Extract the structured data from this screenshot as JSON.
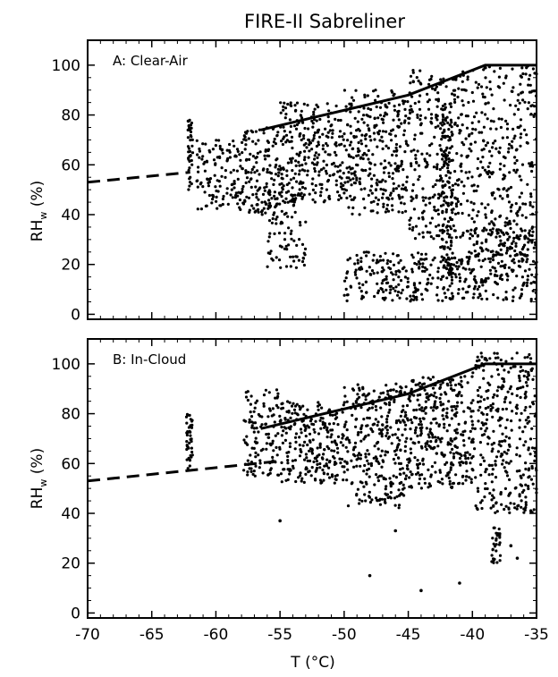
{
  "figure": {
    "title": "FIRE-II Sabreliner",
    "xlabel": "T (°C)"
  },
  "chart_data": [
    {
      "type": "scatter",
      "panel": "A: Clear-Air",
      "ylabel_main": "RH",
      "ylabel_sub": "w",
      "ylabel_unit": " (%)",
      "xlim": [
        -70,
        -35
      ],
      "ylim": [
        -2,
        110
      ],
      "x_ticks": [
        -70,
        -65,
        -60,
        -55,
        -50,
        -45,
        -40,
        -35
      ],
      "y_ticks": [
        0,
        20,
        40,
        60,
        80,
        100
      ],
      "curves": [
        {
          "style": "dashed",
          "x": [
            -70,
            -62
          ],
          "y": [
            53,
            57
          ]
        },
        {
          "style": "solid",
          "x": [
            -56.5,
            -45,
            -39,
            -35
          ],
          "y": [
            74,
            88,
            100,
            100
          ]
        }
      ],
      "clusters": [
        {
          "x": [
            -62.2,
            -61.8
          ],
          "y": [
            50,
            78
          ],
          "density": 40
        },
        {
          "x": [
            -61.5,
            -58
          ],
          "y": [
            42,
            70
          ],
          "density": 120
        },
        {
          "x": [
            -58,
            -55
          ],
          "y": [
            40,
            75
          ],
          "density": 150
        },
        {
          "x": [
            -56,
            -53
          ],
          "y": [
            18,
            50
          ],
          "density": 90
        },
        {
          "x": [
            -55,
            -50
          ],
          "y": [
            45,
            85
          ],
          "density": 260
        },
        {
          "x": [
            -50,
            -45
          ],
          "y": [
            40,
            90
          ],
          "density": 300
        },
        {
          "x": [
            -45,
            -40
          ],
          "y": [
            30,
            98
          ],
          "density": 320
        },
        {
          "x": [
            -40,
            -35
          ],
          "y": [
            20,
            100
          ],
          "density": 300
        },
        {
          "x": [
            -50,
            -40
          ],
          "y": [
            5,
            25
          ],
          "density": 260
        },
        {
          "x": [
            -40,
            -35
          ],
          "y": [
            5,
            35
          ],
          "density": 200
        },
        {
          "x": [
            -42.5,
            -41.5
          ],
          "y": [
            5,
            85
          ],
          "density": 120
        }
      ]
    },
    {
      "type": "scatter",
      "panel": "B: In-Cloud",
      "ylabel_main": "RH",
      "ylabel_sub": "w",
      "ylabel_unit": " (%)",
      "xlim": [
        -70,
        -35
      ],
      "ylim": [
        -2,
        110
      ],
      "x_ticks": [
        -70,
        -65,
        -60,
        -55,
        -50,
        -45,
        -40,
        -35
      ],
      "y_ticks": [
        0,
        20,
        40,
        60,
        80,
        100
      ],
      "x_ticklabels": [
        "-70",
        "-65",
        "-60",
        "-55",
        "-50",
        "-45",
        "-40",
        "-35"
      ],
      "curves": [
        {
          "style": "dashed",
          "x": [
            -70,
            -55
          ],
          "y": [
            53,
            61
          ]
        },
        {
          "style": "solid",
          "x": [
            -56.5,
            -45,
            -39,
            -35
          ],
          "y": [
            74,
            88,
            100,
            100
          ]
        }
      ],
      "clusters": [
        {
          "x": [
            -62.3,
            -61.8
          ],
          "y": [
            58,
            80
          ],
          "density": 40
        },
        {
          "x": [
            -58,
            -55
          ],
          "y": [
            55,
            90
          ],
          "density": 120
        },
        {
          "x": [
            -55,
            -50
          ],
          "y": [
            52,
            85
          ],
          "density": 250
        },
        {
          "x": [
            -50,
            -45
          ],
          "y": [
            42,
            92
          ],
          "density": 320
        },
        {
          "x": [
            -45,
            -40
          ],
          "y": [
            50,
            95
          ],
          "density": 340
        },
        {
          "x": [
            -40,
            -35
          ],
          "y": [
            40,
            105
          ],
          "density": 340
        },
        {
          "x": [
            -38.5,
            -37.8
          ],
          "y": [
            20,
            35
          ],
          "density": 30
        }
      ],
      "isolated_points": [
        [
          -55,
          37
        ],
        [
          -48,
          15
        ],
        [
          -46,
          33
        ],
        [
          -44,
          9
        ],
        [
          -41,
          12
        ],
        [
          -37,
          27
        ],
        [
          -36.5,
          22
        ]
      ]
    }
  ]
}
